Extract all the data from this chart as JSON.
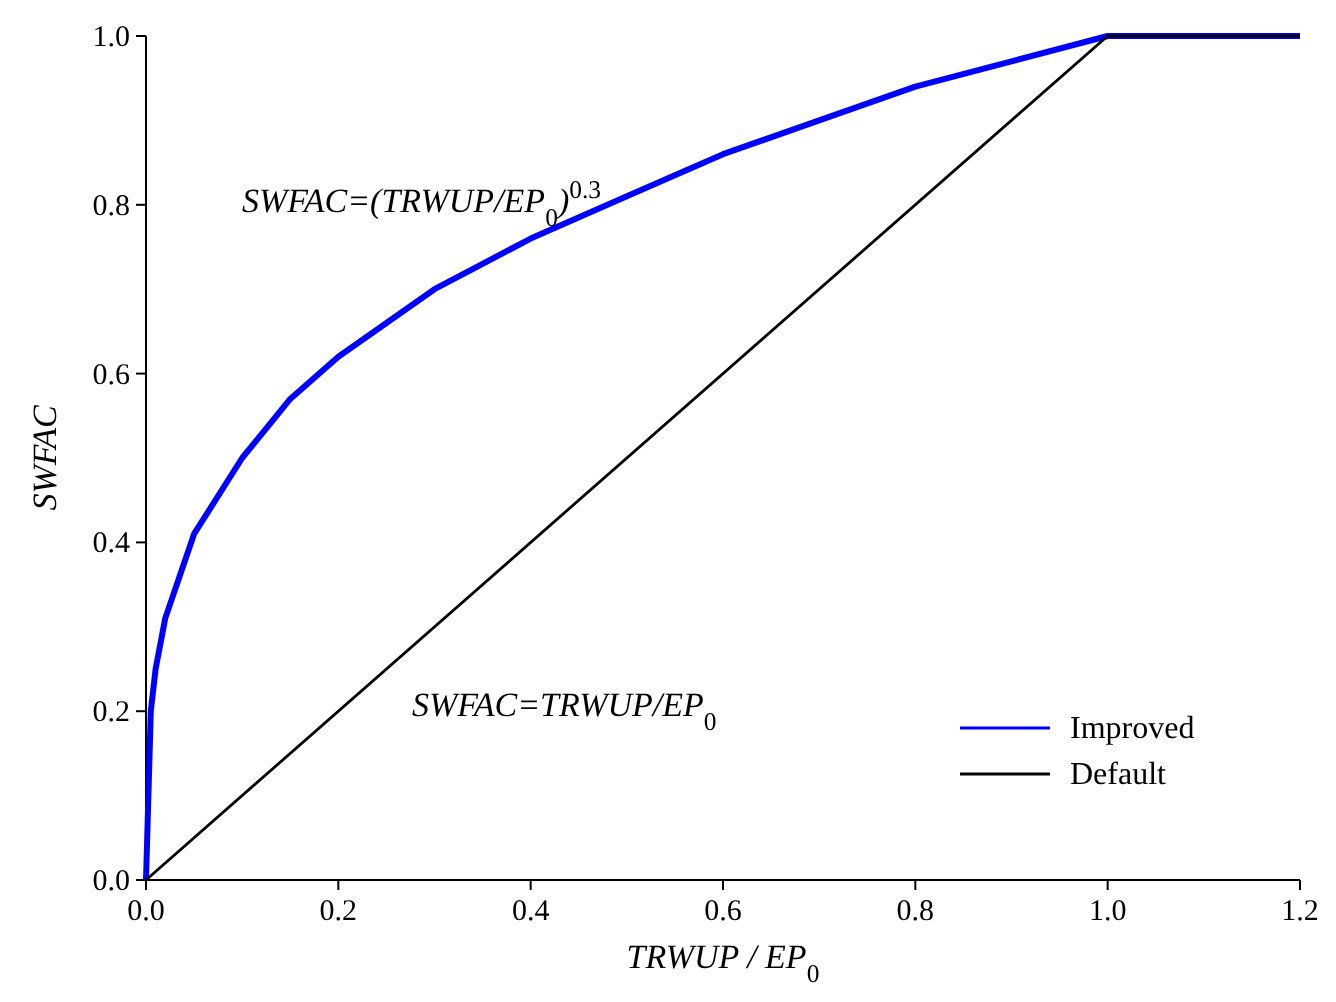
{
  "chart_data": {
    "type": "line",
    "xlabel": "TRWUP / EP$_{0}$",
    "ylabel": "SWFAC",
    "xlim": [
      0,
      1.2
    ],
    "xticks": [
      {
        "value": 0,
        "label": "0.0"
      },
      0.2,
      0.4,
      0.6,
      0.8,
      {
        "value": 1,
        "label": "1.0"
      },
      1.2
    ],
    "ylim": [
      0,
      1
    ],
    "yticks": [
      {
        "value": 0,
        "label": "0.0"
      },
      0.2,
      0.4,
      0.6,
      0.8,
      {
        "value": 1,
        "label": "1.0"
      }
    ],
    "grid": false,
    "legend": "bottom right",
    "marker": "none",
    "line_style": "solid",
    "series": [
      {
        "name": "Improved",
        "color": "#0000ff",
        "x": [
          0,
          0.005,
          0.01,
          0.02,
          0.05,
          0.1,
          0.15,
          0.2,
          0.3,
          0.4,
          0.5,
          0.6,
          0.7,
          0.8,
          0.9,
          1.0,
          1.2
        ],
        "values": [
          0,
          0.2,
          0.25,
          0.31,
          0.41,
          0.5,
          0.57,
          0.62,
          0.7,
          0.76,
          0.81,
          0.86,
          0.9,
          0.94,
          0.97,
          1,
          1
        ]
      },
      {
        "name": "Default",
        "color": "#000000",
        "x": [
          0,
          1,
          1.2
        ],
        "values": [
          0,
          1,
          1
        ]
      }
    ],
    "annotations": [
      "SWFAC=(TRWUP/EP$_{0}$)$^{0.3}$",
      "SWFAC=TRWUP/EP$_{0}$"
    ]
  }
}
